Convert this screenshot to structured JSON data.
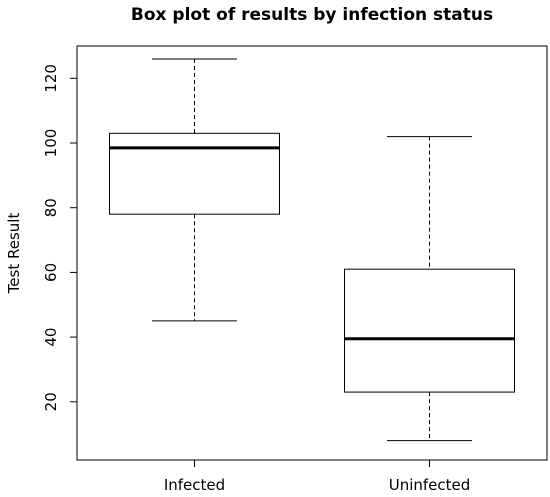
{
  "chart_data": {
    "type": "boxplot",
    "title": "Box plot of results by infection status",
    "ylabel": "Test Result",
    "xlabel": "",
    "ylim": [
      2,
      130
    ],
    "yticks": [
      20,
      40,
      60,
      80,
      100,
      120
    ],
    "categories": [
      "Infected",
      "Uninfected"
    ],
    "boxes": [
      {
        "category": "Infected",
        "min": 45,
        "q1": 78,
        "median": 98.5,
        "q3": 103,
        "max": 126
      },
      {
        "category": "Uninfected",
        "min": 8,
        "q1": 23,
        "median": 39.5,
        "q3": 61,
        "max": 102
      }
    ],
    "grid": false,
    "legend": false
  }
}
